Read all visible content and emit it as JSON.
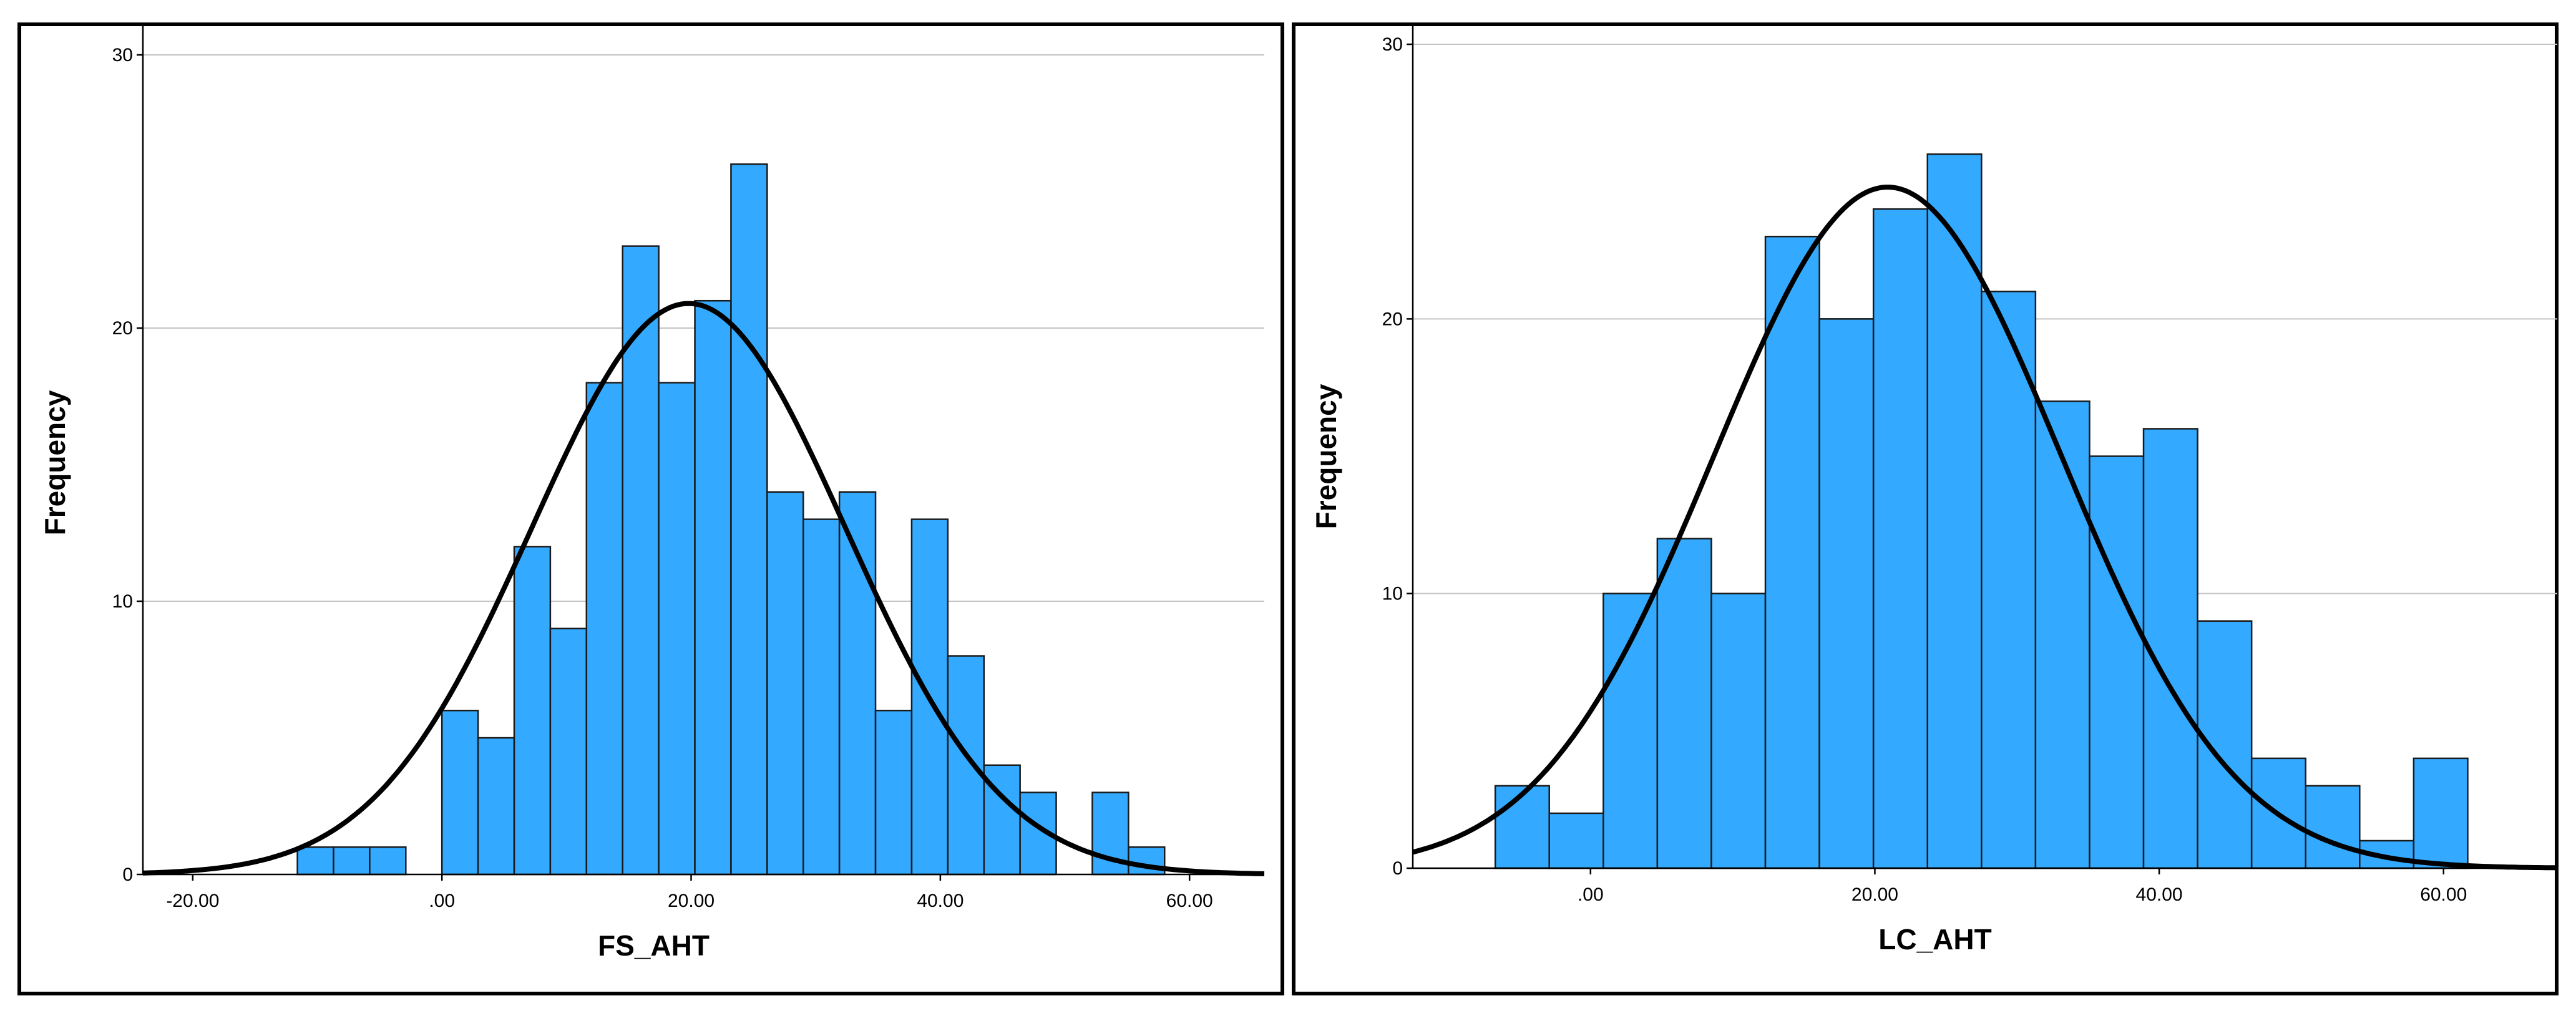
{
  "chart_data": [
    {
      "type": "bar",
      "xlabel": "FS_AHT",
      "ylabel": "Frequency",
      "xlim": [
        -24,
        66
      ],
      "ylim": [
        0,
        30
      ],
      "x_ticks": [
        -20,
        0,
        20,
        40,
        60
      ],
      "x_tick_labels": [
        "-20.00",
        ".00",
        "20.00",
        "40.00",
        "60.00"
      ],
      "y_ticks": [
        0,
        10,
        20,
        30
      ],
      "y_tick_labels": [
        "0",
        "10",
        "20",
        "30"
      ],
      "grid": true,
      "bin_width": 2.9,
      "bins": [
        {
          "start": -11.6,
          "count": 1
        },
        {
          "start": -8.7,
          "count": 1
        },
        {
          "start": -5.8,
          "count": 1
        },
        {
          "start": -2.9,
          "count": 0
        },
        {
          "start": 0.0,
          "count": 6
        },
        {
          "start": 2.9,
          "count": 5
        },
        {
          "start": 5.8,
          "count": 12
        },
        {
          "start": 8.7,
          "count": 9
        },
        {
          "start": 11.6,
          "count": 18
        },
        {
          "start": 14.5,
          "count": 23
        },
        {
          "start": 17.4,
          "count": 18
        },
        {
          "start": 20.3,
          "count": 21
        },
        {
          "start": 23.2,
          "count": 26
        },
        {
          "start": 26.1,
          "count": 14
        },
        {
          "start": 29.0,
          "count": 13
        },
        {
          "start": 31.9,
          "count": 14
        },
        {
          "start": 34.8,
          "count": 6
        },
        {
          "start": 37.7,
          "count": 13
        },
        {
          "start": 40.6,
          "count": 8
        },
        {
          "start": 43.5,
          "count": 4
        },
        {
          "start": 46.4,
          "count": 3
        },
        {
          "start": 49.3,
          "count": 0
        },
        {
          "start": 52.2,
          "count": 3
        },
        {
          "start": 55.1,
          "count": 1
        }
      ],
      "normal_curve": {
        "mean": 19.8,
        "sd": 12.6,
        "peak": 20.9
      }
    },
    {
      "type": "bar",
      "xlabel": "LC_AHT",
      "ylabel": "Frequency",
      "xlim": [
        -12.5,
        68
      ],
      "ylim": [
        0,
        30
      ],
      "x_ticks": [
        0,
        20,
        40,
        60
      ],
      "x_tick_labels": [
        ".00",
        "20.00",
        "40.00",
        "60.00"
      ],
      "y_ticks": [
        0,
        10,
        20,
        30
      ],
      "y_tick_labels": [
        "0",
        "10",
        "20",
        "30"
      ],
      "grid": true,
      "bin_width": 3.8,
      "bins": [
        {
          "start": -6.7,
          "count": 3
        },
        {
          "start": -2.9,
          "count": 2
        },
        {
          "start": 0.9,
          "count": 10
        },
        {
          "start": 4.7,
          "count": 12
        },
        {
          "start": 8.5,
          "count": 10
        },
        {
          "start": 12.3,
          "count": 23
        },
        {
          "start": 16.1,
          "count": 20
        },
        {
          "start": 19.9,
          "count": 24
        },
        {
          "start": 23.7,
          "count": 26
        },
        {
          "start": 27.5,
          "count": 21
        },
        {
          "start": 31.3,
          "count": 17
        },
        {
          "start": 35.1,
          "count": 15
        },
        {
          "start": 38.9,
          "count": 16
        },
        {
          "start": 42.7,
          "count": 9
        },
        {
          "start": 46.5,
          "count": 4
        },
        {
          "start": 50.3,
          "count": 3
        },
        {
          "start": 54.1,
          "count": 1
        },
        {
          "start": 57.9,
          "count": 4
        }
      ],
      "normal_curve": {
        "mean": 20.9,
        "sd": 12.2,
        "peak": 24.8
      }
    }
  ]
}
